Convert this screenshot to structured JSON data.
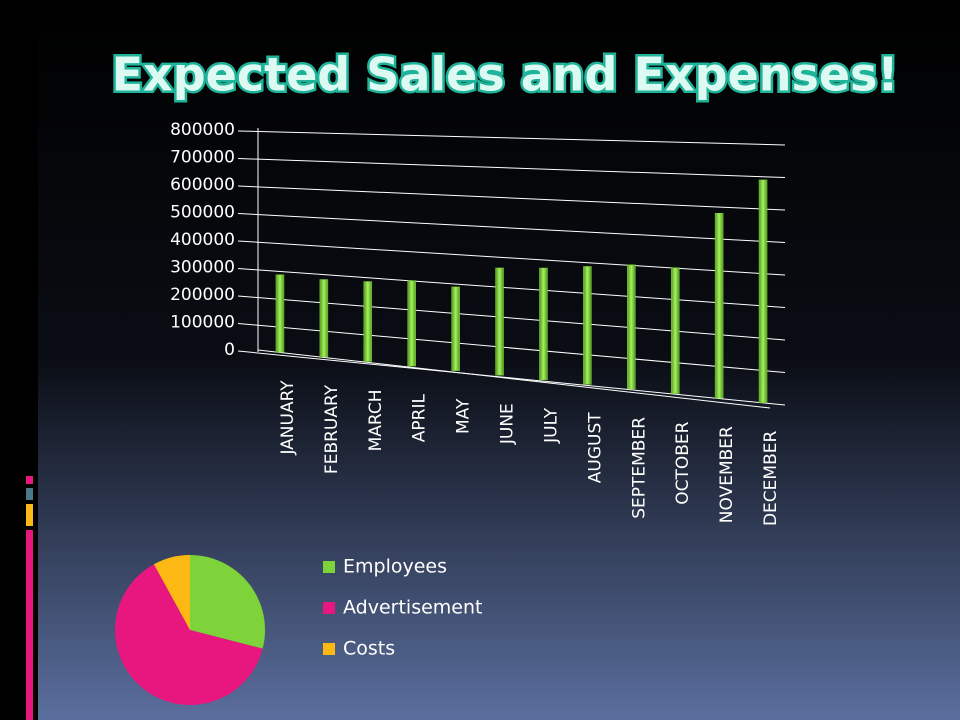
{
  "chart_data": [
    {
      "type": "bar",
      "title": "Expected Sales and Expenses!",
      "categories": [
        "JANUARY",
        "FEBRUARY",
        "MARCH",
        "APRIL",
        "MAY",
        "JUNE",
        "JULY",
        "AUGUST",
        "SEPTEMBER",
        "OCTOBER",
        "NOVEMBER",
        "DECEMBER"
      ],
      "values": [
        280000,
        275000,
        280000,
        295000,
        285000,
        360000,
        370000,
        385000,
        400000,
        400000,
        580000,
        690000
      ],
      "color": "#7cd13a",
      "ylim": [
        0,
        800000
      ],
      "yticks": [
        0,
        100000,
        200000,
        300000,
        400000,
        500000,
        600000,
        700000,
        800000
      ],
      "grid": true
    },
    {
      "type": "pie",
      "categories": [
        "Employees",
        "Advertisement",
        "Costs"
      ],
      "values": [
        29,
        63,
        8
      ],
      "colors": [
        "#7ed23a",
        "#e8177f",
        "#fdb813"
      ]
    }
  ]
}
